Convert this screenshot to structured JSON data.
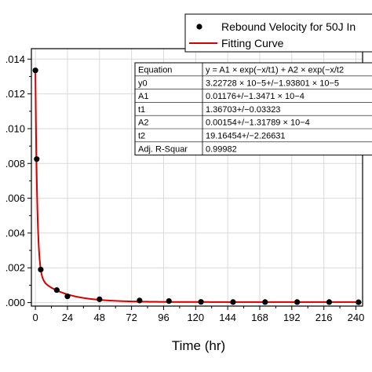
{
  "chart_data": {
    "type": "scatter",
    "xlabel": "Time (hr)",
    "ylabel": "",
    "xlim": [
      -3,
      245
    ],
    "ylim": [
      -0.0002,
      0.0146
    ],
    "x_ticks": [
      0,
      24,
      48,
      72,
      96,
      120,
      144,
      168,
      192,
      216,
      240
    ],
    "x_tick_labels": [
      "0",
      "24",
      "48",
      "72",
      "96",
      "120",
      "144",
      "168",
      "192",
      "216",
      "240"
    ],
    "y_ticks": [
      0.0,
      0.002,
      0.004,
      0.006,
      0.008,
      0.01,
      0.012,
      0.014
    ],
    "y_tick_labels": [
      ".000",
      ".002",
      ".004",
      ".006",
      ".008",
      ".010",
      ".012",
      ".014"
    ],
    "grid": true,
    "legend_position": "top-right",
    "series": [
      {
        "name": "Rebound Velocity for 50J In",
        "kind": "scatter",
        "color": "#000000",
        "x": [
          0,
          1,
          4,
          16,
          24,
          48,
          78,
          100,
          124,
          148,
          172,
          196,
          220,
          242
        ],
        "y": [
          0.01335,
          0.00825,
          0.0019,
          0.00072,
          0.00036,
          0.00019,
          0.00012,
          9e-05,
          4e-05,
          3e-05,
          3e-05,
          3e-05,
          3e-05,
          2e-05
        ]
      },
      {
        "name": "Fitting Curve",
        "kind": "line",
        "color": "#d40000"
      }
    ],
    "fit_table": {
      "header": [
        "Equation",
        "y = A1 × exp(−x/t1) + A2 × exp(−x/t2"
      ],
      "rows": [
        [
          "y0",
          "3.22728 × 10−5+/−1.93801 × 10−5"
        ],
        [
          "A1",
          "0.01176+/−1.3471 × 10−4"
        ],
        [
          "t1",
          "1.36703+/−0.03323"
        ],
        [
          "A2",
          "0.00154+/−1.31789 × 10−4"
        ],
        [
          "t2",
          "19.16454+/−2.26631"
        ],
        [
          "Adj. R-Squar",
          "0.99982"
        ]
      ]
    },
    "fit_params": {
      "y0": 3.22728e-05,
      "A1": 0.01176,
      "t1": 1.36703,
      "A2": 0.00154,
      "t2": 19.16454
    }
  }
}
